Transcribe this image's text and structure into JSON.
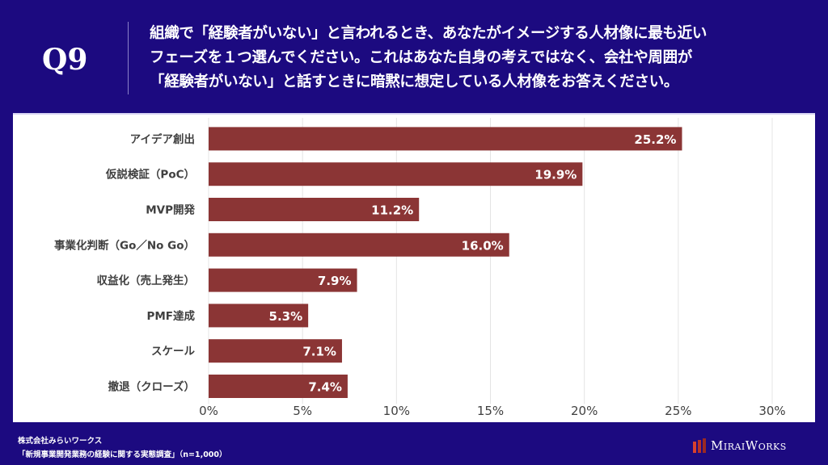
{
  "header": {
    "question_number": "Q9",
    "question_lines": [
      "組織で「経験者がいない」と言われるとき、あなたがイメージする人材像に最も近い",
      "フェーズを１つ選んでください。これはあなた自身の考えではなく、会社や周囲が",
      "「経験者がいない」と話すときに暗黙に想定している人材像をお答えください。"
    ]
  },
  "colors": {
    "background": "#1c0a80",
    "bar": "#8b3535",
    "bar_label": "#ffffff",
    "category_label": "#404040",
    "tick_label": "#404040",
    "gridline": "#e4e4e4"
  },
  "chart_data": {
    "type": "bar",
    "orientation": "horizontal",
    "title": "",
    "xlabel": "",
    "ylabel": "",
    "categories": [
      "アイデア創出",
      "仮説検証（PoC）",
      "MVP開発",
      "事業化判断（Go／No Go）",
      "収益化（売上発生）",
      "PMF達成",
      "スケール",
      "撤退（クローズ）"
    ],
    "values": [
      25.2,
      19.9,
      11.2,
      16.0,
      7.9,
      5.3,
      7.1,
      7.4
    ],
    "value_labels": [
      "25.2%",
      "19.9%",
      "11.2%",
      "16.0%",
      "7.9%",
      "5.3%",
      "7.1%",
      "7.4%"
    ],
    "unit": "%",
    "xlim": [
      0,
      30
    ],
    "xticks": [
      0,
      5,
      10,
      15,
      20,
      25,
      30
    ],
    "xtick_labels": [
      "0%",
      "5%",
      "10%",
      "15%",
      "20%",
      "25%",
      "30%"
    ],
    "grid": true,
    "legend": "none"
  },
  "footer": {
    "company": "株式会社みらいワークス",
    "survey": "「新規事業開発業務の経験に関する実態調査」（n=1,000）",
    "logo_text": "MiraiWorks"
  }
}
